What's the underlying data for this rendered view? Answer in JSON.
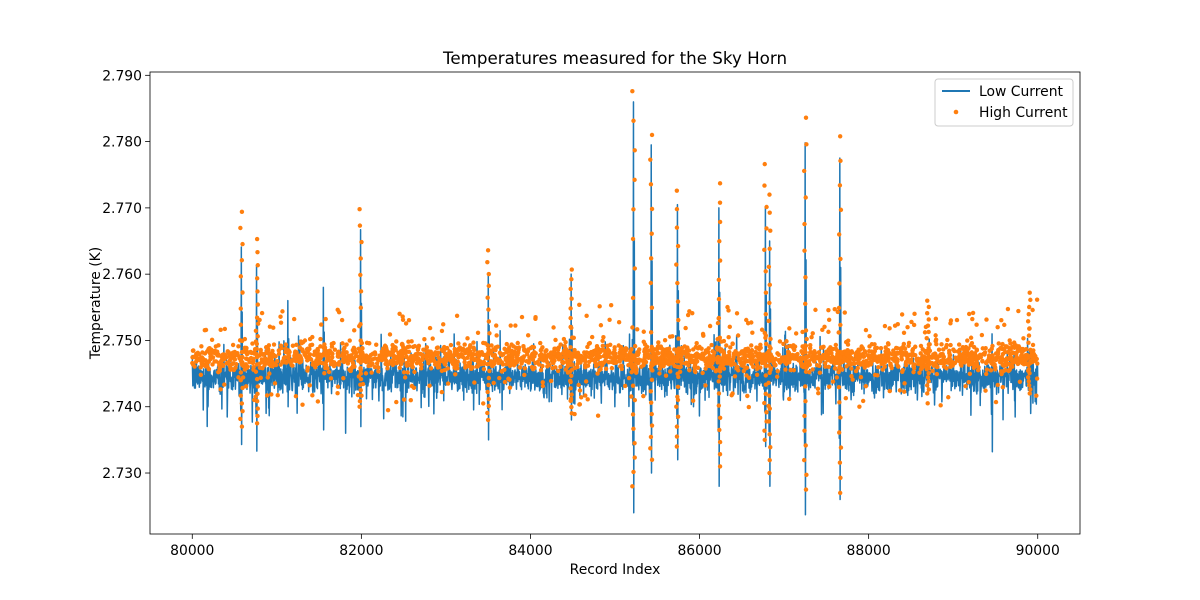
{
  "chart_data": {
    "type": "line+scatter",
    "title": "Temperatures measured for the Sky Horn",
    "xlabel": "Record Index",
    "ylabel": "Temperature (K)",
    "xlim": [
      79500,
      90500
    ],
    "ylim": [
      2.7208,
      2.7905
    ],
    "xticks": [
      80000,
      82000,
      84000,
      86000,
      88000,
      90000
    ],
    "xtick_labels": [
      "80000",
      "82000",
      "84000",
      "86000",
      "88000",
      "90000"
    ],
    "yticks": [
      2.73,
      2.74,
      2.75,
      2.76,
      2.77,
      2.78,
      2.79
    ],
    "ytick_labels": [
      "2.730",
      "2.740",
      "2.750",
      "2.760",
      "2.770",
      "2.780",
      "2.790"
    ],
    "legend_position": "top-right",
    "grid": false,
    "series": [
      {
        "name": "Low Current",
        "kind": "line",
        "color": "#1f77b4",
        "x_range": [
          80000,
          90000
        ],
        "baseline": 2.7445,
        "noise": 0.0012,
        "spikes": [
          {
            "x": 80580,
            "high": 2.7641,
            "low": 2.7343
          },
          {
            "x": 80760,
            "high": 2.7613,
            "low": 2.7333
          },
          {
            "x": 81130,
            "high": 2.756,
            "low": 2.74
          },
          {
            "x": 81550,
            "high": 2.758,
            "low": 2.7365
          },
          {
            "x": 81990,
            "high": 2.7667,
            "low": 2.737
          },
          {
            "x": 83500,
            "high": 2.76,
            "low": 2.735
          },
          {
            "x": 84480,
            "high": 2.76,
            "low": 2.738
          },
          {
            "x": 85220,
            "high": 2.786,
            "low": 2.724
          },
          {
            "x": 85430,
            "high": 2.7795,
            "low": 2.73
          },
          {
            "x": 85740,
            "high": 2.7705,
            "low": 2.732
          },
          {
            "x": 86230,
            "high": 2.77,
            "low": 2.728
          },
          {
            "x": 86780,
            "high": 2.77,
            "low": 2.734
          },
          {
            "x": 86830,
            "high": 2.765,
            "low": 2.728
          },
          {
            "x": 87250,
            "high": 2.7798,
            "low": 2.7237
          },
          {
            "x": 87660,
            "high": 2.7775,
            "low": 2.726
          },
          {
            "x": 89460,
            "high": 2.751,
            "low": 2.7332
          }
        ]
      },
      {
        "name": "High Current",
        "kind": "scatter",
        "color": "#ff7f0e",
        "x_range": [
          80000,
          90000
        ],
        "baseline": 2.7475,
        "noise": 0.001,
        "spikes": [
          {
            "x": 80580,
            "high": 2.7694,
            "low": 2.737
          },
          {
            "x": 80760,
            "high": 2.7653,
            "low": 2.7375
          },
          {
            "x": 81990,
            "high": 2.7698,
            "low": 2.74
          },
          {
            "x": 83500,
            "high": 2.7636,
            "low": 2.738
          },
          {
            "x": 84480,
            "high": 2.7607,
            "low": 2.739
          },
          {
            "x": 85220,
            "high": 2.7876,
            "low": 2.728
          },
          {
            "x": 85430,
            "high": 2.781,
            "low": 2.732
          },
          {
            "x": 85740,
            "high": 2.7726,
            "low": 2.734
          },
          {
            "x": 86230,
            "high": 2.7737,
            "low": 2.731
          },
          {
            "x": 86780,
            "high": 2.7766,
            "low": 2.735
          },
          {
            "x": 86830,
            "high": 2.772,
            "low": 2.73
          },
          {
            "x": 87250,
            "high": 2.7836,
            "low": 2.7275
          },
          {
            "x": 87660,
            "high": 2.7808,
            "low": 2.727
          },
          {
            "x": 88700,
            "high": 2.756,
            "low": 2.742
          },
          {
            "x": 89900,
            "high": 2.7572,
            "low": 2.742
          }
        ]
      }
    ]
  }
}
